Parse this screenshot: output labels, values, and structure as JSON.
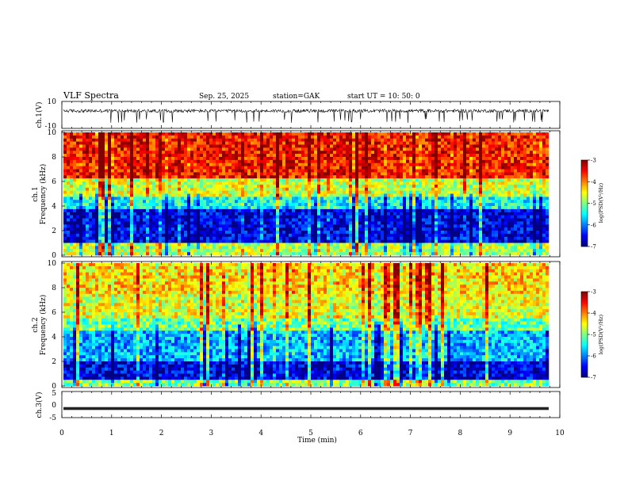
{
  "header": {
    "title": "VLF  Spectra",
    "date": "Sep. 25, 2025",
    "station": "station=GAK",
    "start": "start  UT  =    10: 50: 0"
  },
  "colors": {
    "spectrum_low": "#000080",
    "spectrum_mid": "#00ff80",
    "spectrum_high": "#ff2020",
    "waveform": "#000000"
  },
  "chart_data": [
    {
      "type": "line",
      "id": "ch1_waveform",
      "ylabel": "ch.1(V)",
      "yticks": [
        10,
        -10
      ],
      "ylim": [
        -10,
        10
      ],
      "xlim": [
        0,
        9.83
      ],
      "baseline_value": 3,
      "spike_min_value": -6
    },
    {
      "type": "heatmap",
      "id": "ch1_spectrogram",
      "ylabel_line1": "ch.1",
      "ylabel_line2": "Frequency  (kHz)",
      "yticks": [
        0,
        2,
        4,
        6,
        8,
        10
      ],
      "ylim": [
        0,
        10
      ],
      "xlim": [
        0,
        9.83
      ],
      "colorbar": {
        "ticks": [
          "-3",
          "-4",
          "-5",
          "-6",
          "-7"
        ],
        "range": [
          -7,
          -3
        ],
        "label": "log(PSD(V²/Hz)"
      }
    },
    {
      "type": "heatmap",
      "id": "ch2_spectrogram",
      "ylabel_line1": "ch.2",
      "ylabel_line2": "Frequency  (kHz)",
      "yticks": [
        0,
        2,
        4,
        6,
        8,
        10
      ],
      "ylim": [
        0,
        10
      ],
      "xlim": [
        0,
        9.83
      ],
      "colorbar": {
        "ticks": [
          "-3",
          "-4",
          "-5",
          "-6",
          "-7"
        ],
        "range": [
          -7,
          -3
        ],
        "label": "log(PSD(V²/Hz)"
      }
    },
    {
      "type": "line",
      "id": "ch3_waveform",
      "ylabel": "ch.3(V)",
      "yticks": [
        5,
        0,
        -5
      ],
      "ylim": [
        -5,
        5
      ],
      "xlim": [
        0,
        9.83
      ],
      "baseline_value": -1.5
    }
  ],
  "x_axis": {
    "label": "Time  (min)",
    "ticks": [
      "0",
      "1",
      "2",
      "3",
      "4",
      "5",
      "6",
      "7",
      "8",
      "9",
      "10"
    ],
    "range": [
      0,
      10
    ]
  }
}
